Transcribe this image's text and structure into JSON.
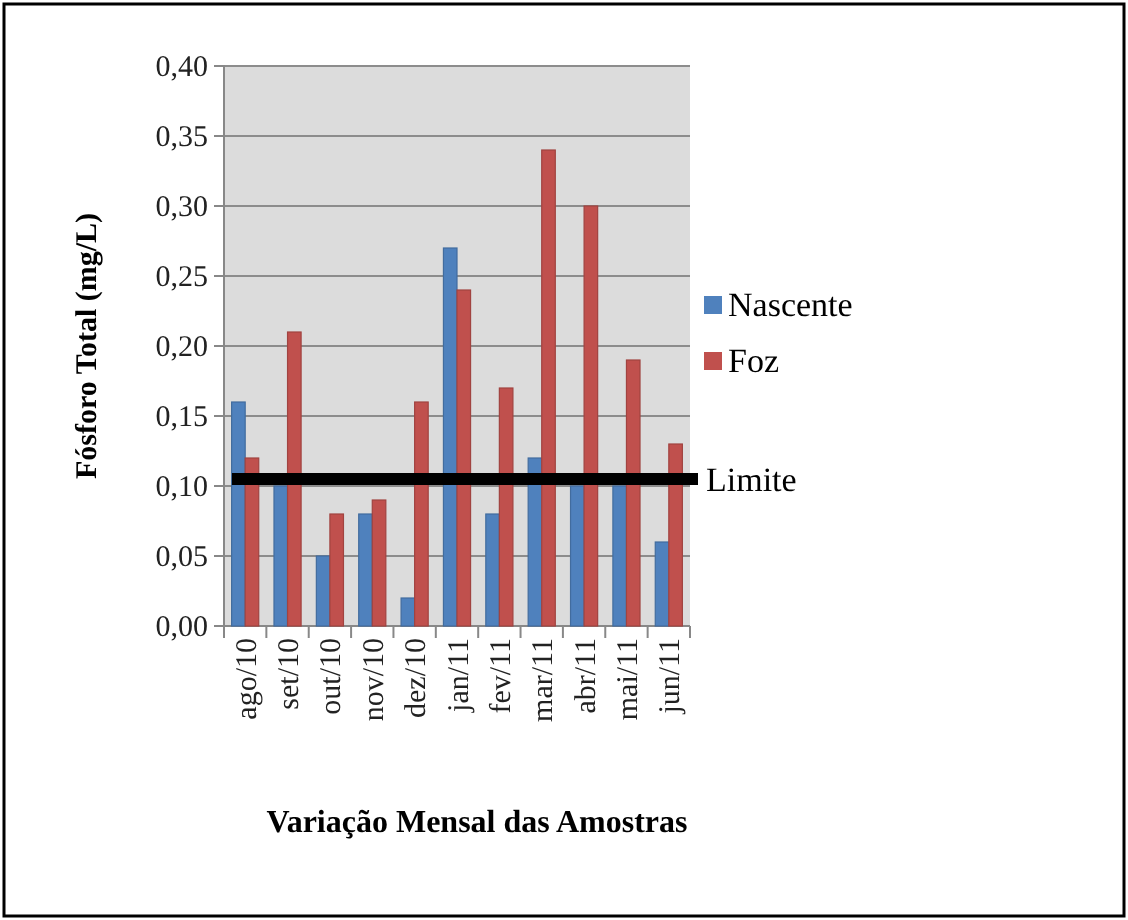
{
  "chart_data": {
    "type": "bar",
    "xlabel": "Variação Mensal das Amostras",
    "ylabel": "Fósforo Total  (mg/L)",
    "categories": [
      "ago/10",
      "set/10",
      "out/10",
      "nov/10",
      "dez/10",
      "jan/11",
      "fev/11",
      "mar/11",
      "abr/11",
      "mai/11",
      "jun/11"
    ],
    "series": [
      {
        "name": "Nascente",
        "color": "#4f81bd",
        "values": [
          0.16,
          0.1,
          0.05,
          0.08,
          0.02,
          0.27,
          0.08,
          0.12,
          0.1,
          0.1,
          0.06
        ]
      },
      {
        "name": "Foz",
        "color": "#c0504d",
        "values": [
          0.12,
          0.21,
          0.08,
          0.09,
          0.16,
          0.24,
          0.17,
          0.34,
          0.3,
          0.19,
          0.13
        ]
      }
    ],
    "ylim": [
      0,
      0.4
    ],
    "yticks": [
      {
        "value": 0,
        "label": "0,00"
      },
      {
        "value": 0.05,
        "label": "0,05"
      },
      {
        "value": 0.1,
        "label": "0,10"
      },
      {
        "value": 0.15,
        "label": "0,15"
      },
      {
        "value": 0.2,
        "label": "0,20"
      },
      {
        "value": 0.25,
        "label": "0,25"
      },
      {
        "value": 0.3,
        "label": "0,30"
      },
      {
        "value": 0.35,
        "label": "0,35"
      },
      {
        "value": 0.4,
        "label": "0,40"
      }
    ],
    "grid": "y",
    "legend": "right",
    "ref_lines": [
      {
        "axis": "y",
        "value": 0.105,
        "label": "Limite",
        "color": "#000000"
      }
    ]
  }
}
